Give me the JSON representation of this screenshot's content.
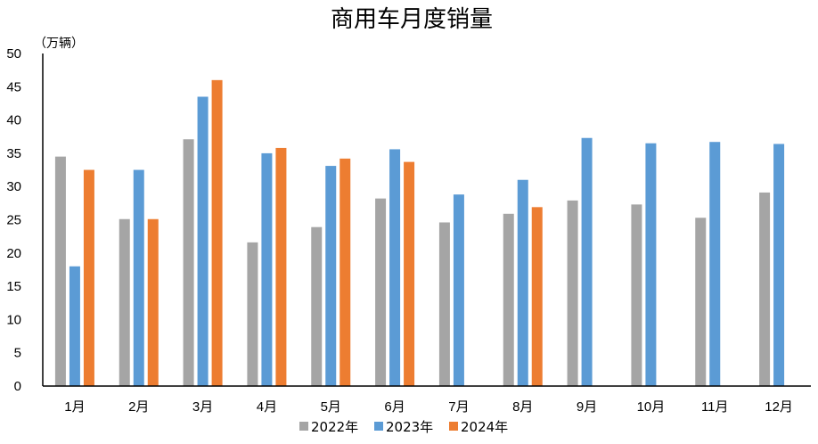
{
  "chart_data": {
    "type": "bar",
    "title": "商用车月度销量",
    "unit_label": "（万辆）",
    "categories": [
      "1月",
      "2月",
      "3月",
      "4月",
      "5月",
      "6月",
      "7月",
      "8月",
      "9月",
      "10月",
      "11月",
      "12月"
    ],
    "series": [
      {
        "name": "2022年",
        "color": "#a5a5a5",
        "values": [
          34.5,
          25.1,
          37.1,
          21.6,
          23.9,
          28.2,
          24.6,
          25.9,
          27.9,
          27.3,
          25.3,
          29.1
        ]
      },
      {
        "name": "2023年",
        "color": "#5b9bd5",
        "values": [
          18.0,
          32.5,
          43.5,
          35.0,
          33.1,
          35.6,
          28.8,
          31.0,
          37.3,
          36.5,
          36.7,
          36.4
        ]
      },
      {
        "name": "2024年",
        "color": "#ed7d31",
        "values": [
          32.5,
          25.1,
          46.0,
          35.8,
          34.2,
          33.7,
          null,
          26.9,
          null,
          null,
          null,
          null
        ]
      }
    ],
    "ylim": [
      0,
      50
    ],
    "yticks": [
      0,
      5,
      10,
      15,
      20,
      25,
      30,
      35,
      40,
      45,
      50
    ],
    "grid": false,
    "legend_position": "bottom"
  }
}
